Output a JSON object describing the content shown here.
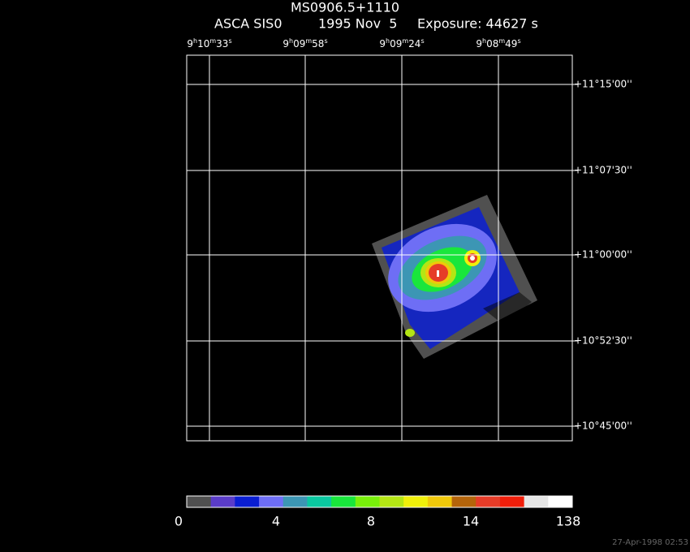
{
  "header": {
    "title": "MS0906.5+1110",
    "instrument": "ASCA SIS0",
    "date": "1995 Nov  5",
    "exposure": "Exposure: 44627 s"
  },
  "ra_labels": [
    [
      "9",
      "h",
      "10",
      "m",
      "33",
      "s"
    ],
    [
      "9",
      "h",
      "09",
      "m",
      "58",
      "s"
    ],
    [
      "9",
      "h",
      "09",
      "m",
      "24",
      "s"
    ],
    [
      "9",
      "h",
      "08",
      "m",
      "49",
      "s"
    ]
  ],
  "dec_labels": [
    "+11°15'00''",
    "+11°07'30''",
    "+11°00'00''",
    "+10°52'30''",
    "+10°45'00''"
  ],
  "colorbar": {
    "colors": [
      "#505050",
      "#5a3cc8",
      "#0a1ed2",
      "#6e6ef5",
      "#3c96b4",
      "#0ac8a0",
      "#19e63c",
      "#78f00a",
      "#b4e614",
      "#f0f00a",
      "#f0c80a",
      "#b4640a",
      "#e63c28",
      "#f01e0a",
      "#e6e6e6",
      "#ffffff"
    ],
    "labels": [
      0,
      4,
      8,
      14,
      138
    ]
  },
  "timestamp": "27-Apr-1998 02:53"
}
